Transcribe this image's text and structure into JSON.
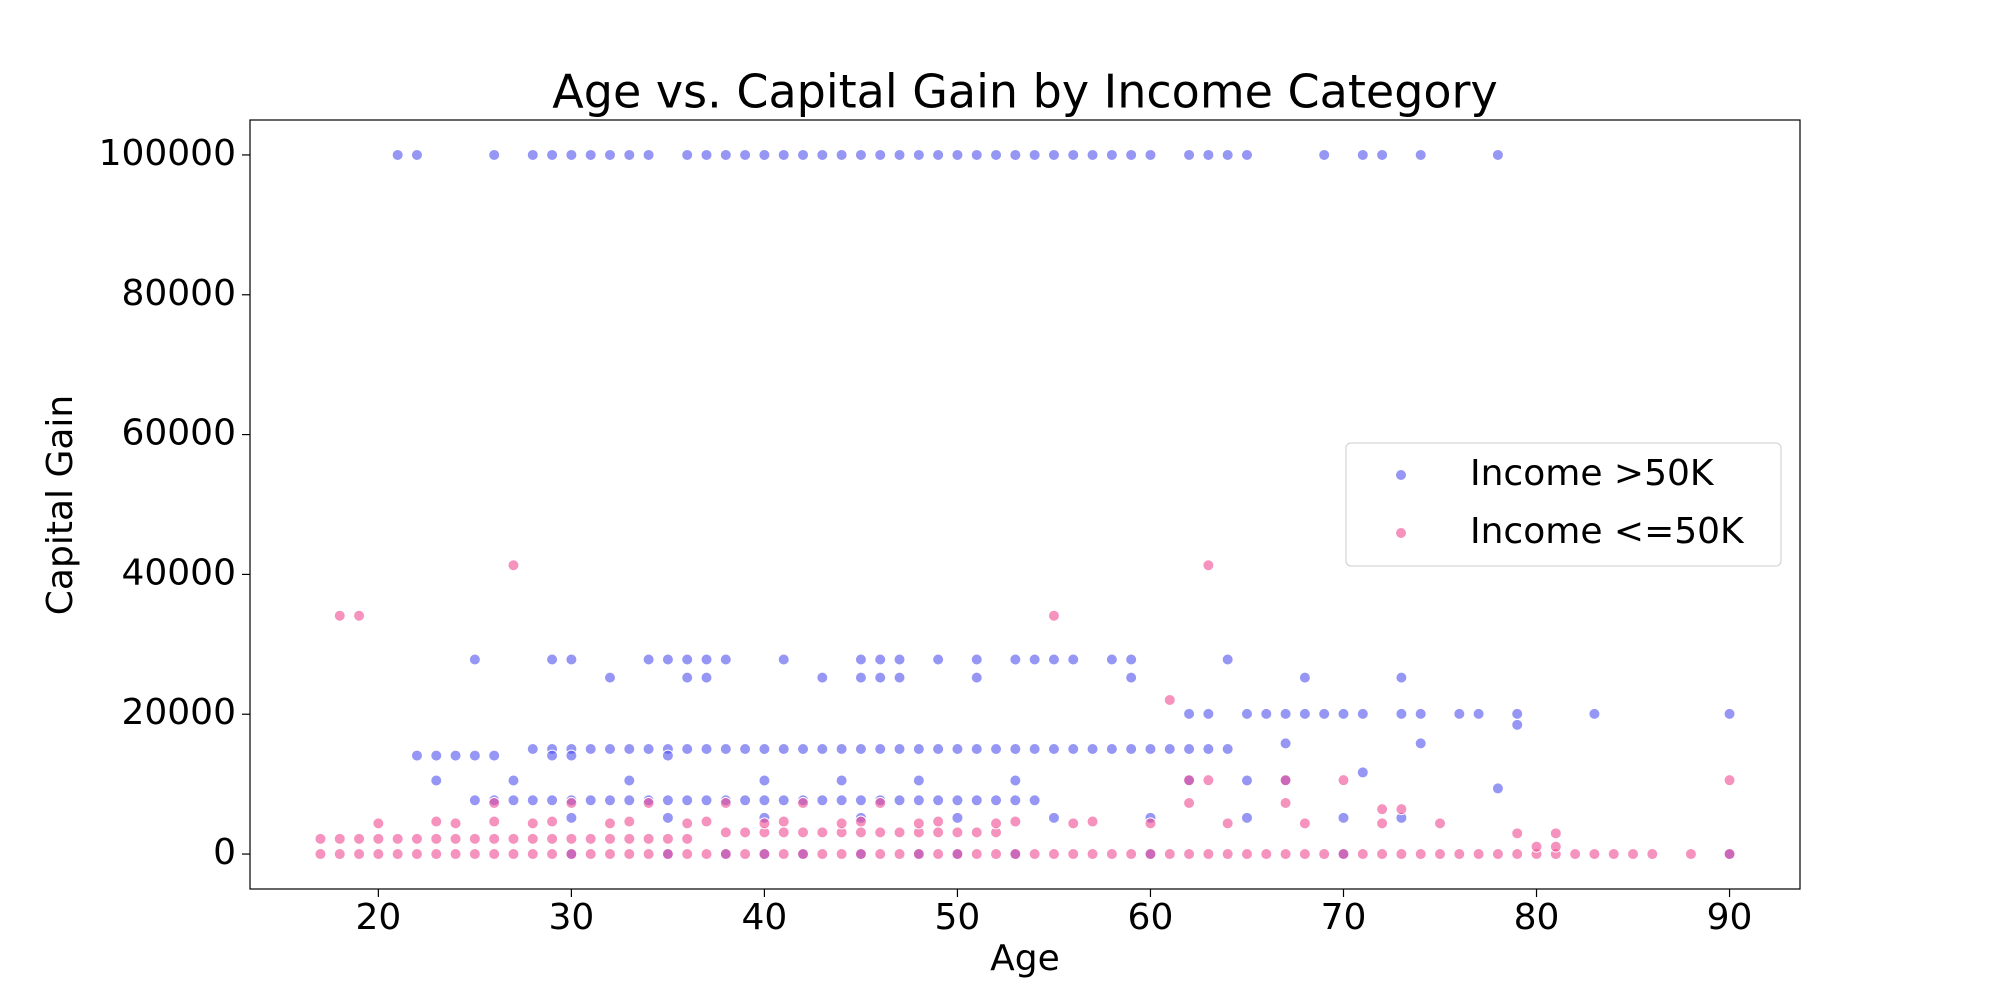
{
  "chart_data": {
    "type": "scatter",
    "title": "Age vs. Capital Gain by Income Category",
    "xlabel": "Age",
    "ylabel": "Capital Gain",
    "xlim": [
      13.35,
      93.65
    ],
    "ylim": [
      -5000,
      104999
    ],
    "xticks": [
      20,
      30,
      40,
      50,
      60,
      70,
      80,
      90
    ],
    "yticks": [
      0,
      20000,
      40000,
      60000,
      80000,
      100000
    ],
    "legend": "center right",
    "series": [
      {
        "name": "Income >50K",
        "color": "#5050ee",
        "x": [
          21,
          22,
          26,
          28,
          29,
          30,
          31,
          32,
          33,
          34,
          36,
          37,
          38,
          39,
          40,
          41,
          42,
          43,
          44,
          45,
          46,
          47,
          48,
          49,
          50,
          51,
          52,
          53,
          54,
          55,
          56,
          57,
          58,
          59,
          60,
          62,
          63,
          64,
          65,
          69,
          71,
          72,
          74,
          78,
          25,
          29,
          30,
          34,
          35,
          36,
          37,
          38,
          41,
          45,
          46,
          47,
          49,
          51,
          53,
          54,
          55,
          56,
          58,
          59,
          64,
          32,
          36,
          37,
          43,
          45,
          46,
          47,
          51,
          59,
          68,
          73,
          62,
          63,
          65,
          66,
          67,
          68,
          69,
          70,
          71,
          73,
          74,
          76,
          77,
          79,
          83,
          90,
          28,
          29,
          30,
          31,
          32,
          33,
          34,
          35,
          36,
          37,
          38,
          39,
          40,
          41,
          42,
          43,
          44,
          45,
          46,
          47,
          48,
          49,
          50,
          51,
          52,
          53,
          54,
          55,
          56,
          57,
          58,
          59,
          60,
          61,
          62,
          63,
          64,
          22,
          23,
          24,
          25,
          26,
          29,
          30,
          35,
          25,
          26,
          27,
          28,
          29,
          30,
          31,
          32,
          33,
          34,
          35,
          36,
          37,
          38,
          39,
          40,
          41,
          42,
          43,
          44,
          45,
          46,
          47,
          48,
          49,
          50,
          51,
          52,
          53,
          54,
          23,
          27,
          33,
          40,
          44,
          48,
          53,
          62,
          65,
          67,
          30,
          35,
          40,
          45,
          50,
          55,
          60,
          65,
          70,
          73,
          30,
          35,
          38,
          40,
          42,
          45,
          48,
          50,
          53,
          60,
          70,
          90,
          67,
          74,
          78,
          79,
          71
        ],
        "values": [
          99999,
          99999,
          99999,
          99999,
          99999,
          99999,
          99999,
          99999,
          99999,
          99999,
          99999,
          99999,
          99999,
          99999,
          99999,
          99999,
          99999,
          99999,
          99999,
          99999,
          99999,
          99999,
          99999,
          99999,
          99999,
          99999,
          99999,
          99999,
          99999,
          99999,
          99999,
          99999,
          99999,
          99999,
          99999,
          99999,
          99999,
          99999,
          99999,
          99999,
          99999,
          99999,
          99999,
          99999,
          27828,
          27828,
          27828,
          27828,
          27828,
          27828,
          27828,
          27828,
          27828,
          27828,
          27828,
          27828,
          27828,
          27828,
          27828,
          27828,
          27828,
          27828,
          27828,
          27828,
          27828,
          25236,
          25236,
          25236,
          25236,
          25236,
          25236,
          25236,
          25236,
          25236,
          25236,
          25236,
          20051,
          20051,
          20051,
          20051,
          20051,
          20051,
          20051,
          20051,
          20051,
          20051,
          20051,
          20051,
          20051,
          20051,
          20051,
          20051,
          15024,
          15024,
          15024,
          15024,
          15024,
          15024,
          15024,
          15024,
          15024,
          15024,
          15024,
          15024,
          15024,
          15024,
          15024,
          15024,
          15024,
          15024,
          15024,
          15024,
          15024,
          15024,
          15024,
          15024,
          15024,
          15024,
          15024,
          15024,
          15024,
          15024,
          15024,
          15024,
          15024,
          15024,
          15024,
          15024,
          15024,
          14084,
          14084,
          14084,
          14084,
          14084,
          14084,
          14084,
          14084,
          7688,
          7688,
          7688,
          7688,
          7688,
          7688,
          7688,
          7688,
          7688,
          7688,
          7688,
          7688,
          7688,
          7688,
          7688,
          7688,
          7688,
          7688,
          7688,
          7688,
          7688,
          7688,
          7688,
          7688,
          7688,
          7688,
          7688,
          7688,
          7688,
          7688,
          10520,
          10520,
          10520,
          10520,
          10520,
          10520,
          10520,
          10520,
          10520,
          10520,
          5178,
          5178,
          5178,
          5178,
          5178,
          5178,
          5178,
          5178,
          5178,
          5178,
          0,
          0,
          0,
          0,
          0,
          0,
          0,
          0,
          0,
          0,
          0,
          0,
          15831,
          15831,
          9386,
          18481,
          11678
        ]
      },
      {
        "name": "Income <=50K",
        "color": "#ee4a92",
        "x": [
          17,
          18,
          19,
          20,
          21,
          22,
          23,
          24,
          25,
          26,
          27,
          28,
          29,
          30,
          31,
          32,
          33,
          34,
          35,
          36,
          37,
          38,
          39,
          40,
          41,
          42,
          43,
          44,
          45,
          46,
          47,
          48,
          49,
          50,
          51,
          52,
          53,
          54,
          55,
          56,
          57,
          58,
          59,
          60,
          61,
          62,
          63,
          64,
          65,
          66,
          67,
          68,
          69,
          70,
          71,
          72,
          73,
          74,
          75,
          76,
          77,
          78,
          79,
          80,
          81,
          82,
          83,
          84,
          85,
          86,
          88,
          90,
          17,
          18,
          19,
          20,
          21,
          22,
          23,
          24,
          25,
          26,
          27,
          28,
          29,
          30,
          31,
          32,
          33,
          34,
          35,
          36,
          38,
          39,
          40,
          41,
          42,
          43,
          44,
          45,
          46,
          47,
          48,
          49,
          50,
          51,
          52,
          20,
          24,
          28,
          32,
          36,
          40,
          44,
          48,
          52,
          56,
          60,
          64,
          68,
          72,
          75,
          23,
          26,
          29,
          33,
          37,
          41,
          45,
          49,
          53,
          57,
          26,
          30,
          34,
          38,
          42,
          46,
          62,
          67,
          62,
          63,
          67,
          70,
          90,
          18,
          19,
          55,
          27,
          63,
          61,
          72,
          73,
          79,
          81,
          80,
          81
        ],
        "values": [
          0,
          0,
          0,
          0,
          0,
          0,
          0,
          0,
          0,
          0,
          0,
          0,
          0,
          0,
          0,
          0,
          0,
          0,
          0,
          0,
          0,
          0,
          0,
          0,
          0,
          0,
          0,
          0,
          0,
          0,
          0,
          0,
          0,
          0,
          0,
          0,
          0,
          0,
          0,
          0,
          0,
          0,
          0,
          0,
          0,
          0,
          0,
          0,
          0,
          0,
          0,
          0,
          0,
          0,
          0,
          0,
          0,
          0,
          0,
          0,
          0,
          0,
          0,
          0,
          0,
          0,
          0,
          0,
          0,
          0,
          0,
          0,
          2174,
          2174,
          2174,
          2174,
          2174,
          2174,
          2174,
          2174,
          2174,
          2174,
          2174,
          2174,
          2174,
          2174,
          2174,
          2174,
          2174,
          2174,
          2174,
          2174,
          3103,
          3103,
          3103,
          3103,
          3103,
          3103,
          3103,
          3103,
          3103,
          3103,
          3103,
          3103,
          3103,
          3103,
          3103,
          4386,
          4386,
          4386,
          4386,
          4386,
          4386,
          4386,
          4386,
          4386,
          4386,
          4386,
          4386,
          4386,
          4386,
          4386,
          4650,
          4650,
          4650,
          4650,
          4650,
          4650,
          4650,
          4650,
          4650,
          4650,
          7298,
          7298,
          7298,
          7298,
          7298,
          7298,
          7298,
          7298,
          10566,
          10566,
          10566,
          10566,
          10566,
          34095,
          34095,
          34095,
          41310,
          41310,
          22040,
          6418,
          6418,
          2964,
          2964,
          1055,
          1055
        ]
      }
    ]
  }
}
